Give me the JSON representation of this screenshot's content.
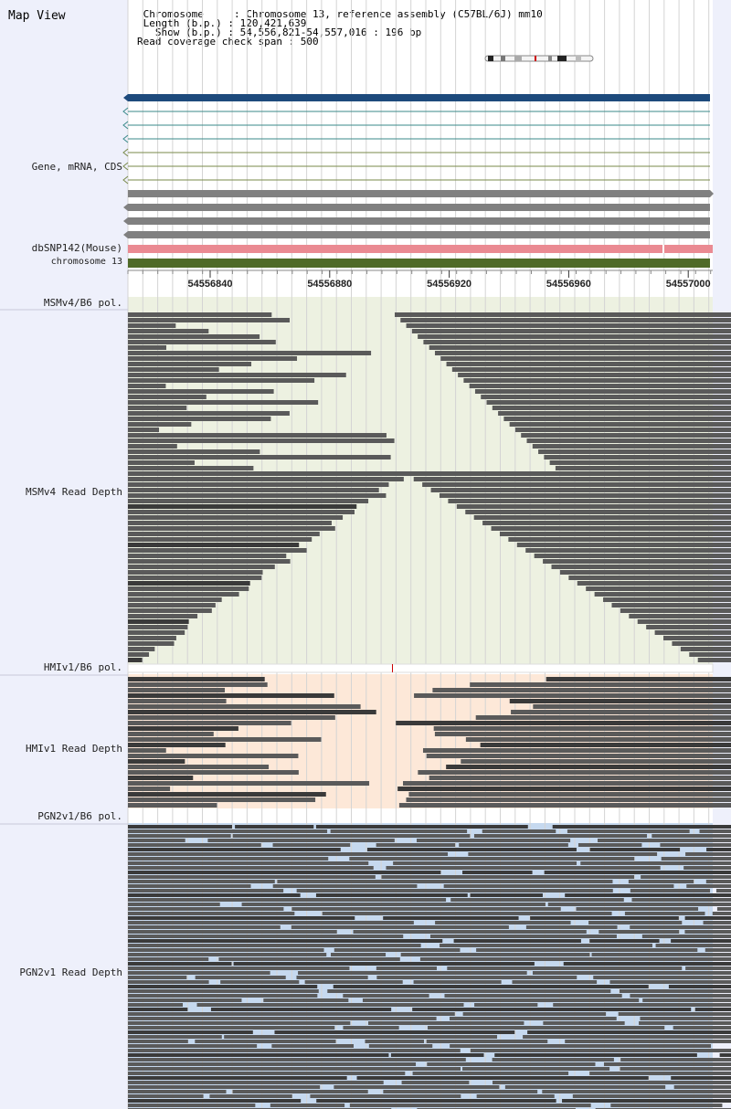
{
  "left_panel": {
    "title": "Map View",
    "track_labels": {
      "gene": "Gene, mRNA, CDS",
      "dbsnp": "dbSNP142(Mouse)",
      "chromosome": "chromosome 13",
      "msm_pol": "MSMv4/B6 pol.",
      "msm_depth": "MSMv4 Read Depth",
      "hmi_pol": "HMIv1/B6 pol.",
      "hmi_depth": "HMIv1 Read Depth",
      "pgn_pol": "PGN2v1/B6 pol.",
      "pgn_depth": "PGN2v1 Read Depth"
    }
  },
  "header": {
    "chromosome_line": " Chromosome     : Chromosome 13, reference assembly (C57BL/6J) mm10",
    "length_line": " Length (b.p.) : 120,421,639",
    "show_line": "   Show (b.p.) : 54,556,821-54,557,016 : 196 bp",
    "coverage_line": "Read coverage check span : 500"
  },
  "axis": {
    "ticks": [
      "54556840",
      "54556880",
      "54556920",
      "54556960",
      "54557000"
    ]
  },
  "colors": {
    "left_panel_bg": "#eef0fb",
    "gene_main": "#1d4a7c",
    "gene_thin": "#3a8a8a",
    "gene_olive": "#7a8a4a",
    "cds_gray": "#808080",
    "dbsnp": "#ea8a92",
    "chromosome_bar": "#4f6a28",
    "msm_bg": "#edf1e1",
    "hmi_bg": "#fde8d8",
    "pgn_bg": "#c6d9ef",
    "read_dark": "#3a3a3a",
    "read_mid": "#5a5a5a",
    "marker_red": "#cc0000"
  }
}
